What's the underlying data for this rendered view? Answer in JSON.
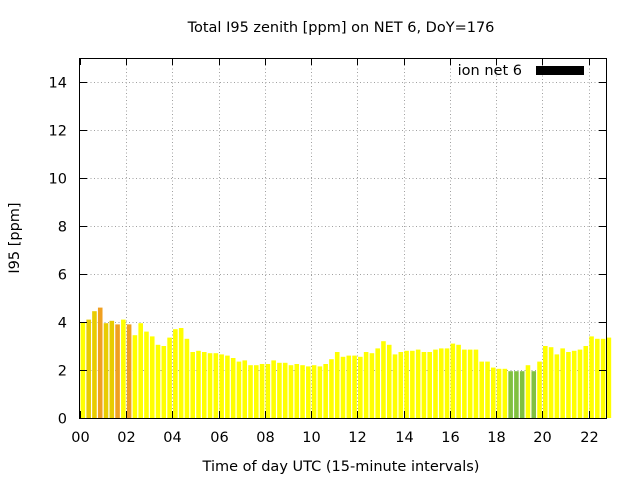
{
  "chart_data": {
    "type": "bar",
    "title": "Total I95 zenith [ppm] on NET 6, DoY=176",
    "xlabel": "Time of day UTC (15-minute intervals)",
    "ylabel": "I95 [ppm]",
    "ylim": [
      0,
      15
    ],
    "yticks": [
      "0",
      "2",
      "4",
      "6",
      "8",
      "10",
      "12",
      "14"
    ],
    "xlim_hours": [
      0,
      22.75
    ],
    "xticks": [
      "00",
      "02",
      "04",
      "06",
      "08",
      "10",
      "12",
      "14",
      "16",
      "18",
      "20",
      "22"
    ],
    "grid": true,
    "legend": {
      "position": "top-right",
      "label": "ion net 6",
      "color": "#000000"
    },
    "colors": {
      "yellow": "#ffff00",
      "gold": "#e8cc00",
      "orange": "#f0a020",
      "green": "#80c040"
    },
    "series": [
      {
        "name": "ion net 6",
        "start_hour": 0.0,
        "interval_hours": 0.25,
        "values": [
          4.0,
          4.1,
          4.45,
          4.6,
          3.95,
          4.05,
          3.9,
          4.1,
          3.9,
          3.45,
          3.95,
          3.6,
          3.4,
          3.05,
          3.0,
          3.35,
          3.7,
          3.75,
          3.3,
          2.75,
          2.8,
          2.75,
          2.7,
          2.7,
          2.65,
          2.6,
          2.5,
          2.35,
          2.4,
          2.2,
          2.2,
          2.25,
          2.25,
          2.4,
          2.3,
          2.3,
          2.2,
          2.25,
          2.2,
          2.15,
          2.2,
          2.15,
          2.25,
          2.45,
          2.75,
          2.55,
          2.6,
          2.6,
          2.55,
          2.75,
          2.7,
          2.9,
          3.2,
          3.05,
          2.65,
          2.75,
          2.8,
          2.8,
          2.85,
          2.75,
          2.75,
          2.85,
          2.9,
          2.9,
          3.1,
          3.05,
          2.85,
          2.85,
          2.85,
          2.35,
          2.35,
          2.1,
          2.05,
          2.05,
          1.95,
          1.95,
          1.95,
          2.2,
          1.95,
          2.35,
          3.0,
          2.95,
          2.65,
          2.9,
          2.75,
          2.8,
          2.85,
          3.0,
          3.4,
          3.3,
          3.3,
          3.35
        ],
        "colors": [
          "yellow",
          "gold",
          "gold",
          "orange",
          "gold",
          "gold",
          "orange",
          "yellow",
          "orange",
          "yellow",
          "yellow",
          "yellow",
          "yellow",
          "yellow",
          "yellow",
          "yellow",
          "yellow",
          "yellow",
          "yellow",
          "yellow",
          "yellow",
          "yellow",
          "yellow",
          "yellow",
          "yellow",
          "yellow",
          "yellow",
          "yellow",
          "yellow",
          "yellow",
          "yellow",
          "yellow",
          "yellow",
          "yellow",
          "yellow",
          "yellow",
          "yellow",
          "yellow",
          "yellow",
          "yellow",
          "yellow",
          "yellow",
          "yellow",
          "yellow",
          "yellow",
          "yellow",
          "yellow",
          "yellow",
          "yellow",
          "yellow",
          "yellow",
          "yellow",
          "yellow",
          "yellow",
          "yellow",
          "yellow",
          "yellow",
          "yellow",
          "yellow",
          "yellow",
          "yellow",
          "yellow",
          "yellow",
          "yellow",
          "yellow",
          "yellow",
          "yellow",
          "yellow",
          "yellow",
          "yellow",
          "yellow",
          "yellow",
          "yellow",
          "yellow",
          "green",
          "green",
          "green",
          "yellow",
          "green",
          "yellow",
          "yellow",
          "yellow",
          "yellow",
          "yellow",
          "yellow",
          "yellow",
          "yellow",
          "yellow",
          "yellow",
          "yellow",
          "yellow",
          "yellow"
        ]
      }
    ]
  }
}
